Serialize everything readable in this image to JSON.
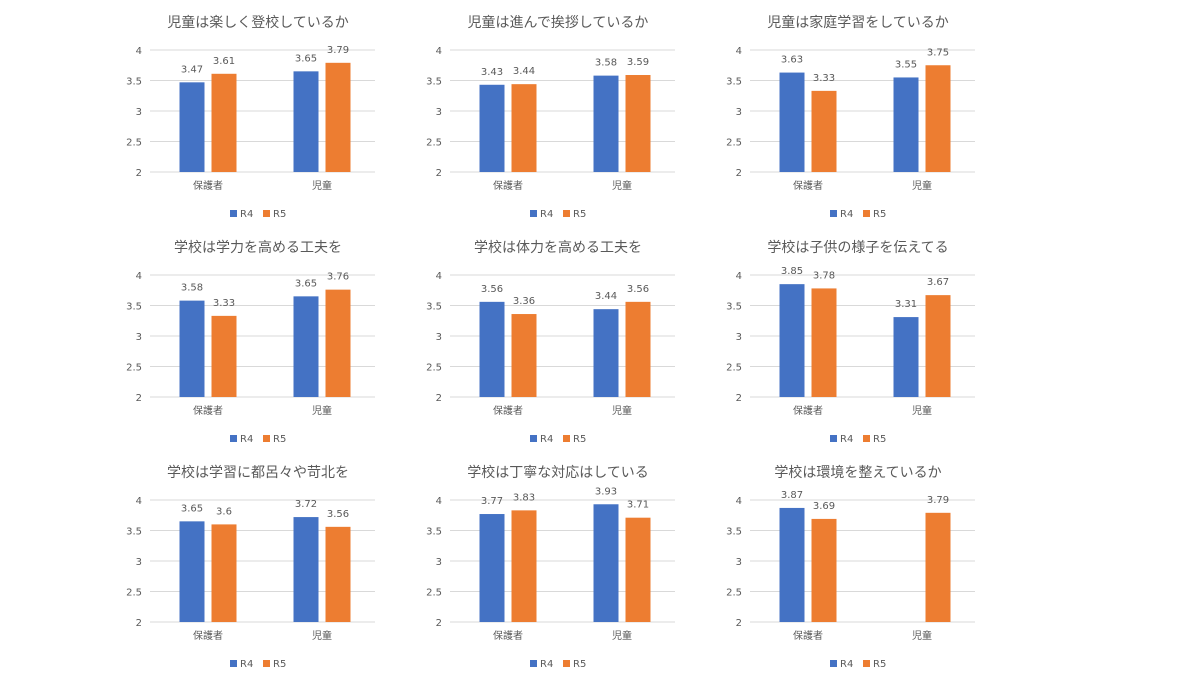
{
  "colors": {
    "R4": "#4472C4",
    "R5": "#ED7D31",
    "grid": "#D9D9D9",
    "text": "#595959"
  },
  "chart_data": [
    {
      "type": "bar",
      "title": "児童は楽しく登校しているか",
      "categories": [
        "保護者",
        "児童"
      ],
      "series": [
        {
          "name": "R4",
          "values": [
            3.47,
            3.65
          ]
        },
        {
          "name": "R5",
          "values": [
            3.61,
            3.79
          ]
        }
      ],
      "ylim": [
        2,
        4
      ],
      "yticks": [
        "2",
        "2.5",
        "3",
        "3.5",
        "4"
      ],
      "grid": true,
      "legend": "bottom"
    },
    {
      "type": "bar",
      "title": "児童は進んで挨拶しているか",
      "categories": [
        "保護者",
        "児童"
      ],
      "series": [
        {
          "name": "R4",
          "values": [
            3.43,
            3.58
          ]
        },
        {
          "name": "R5",
          "values": [
            3.44,
            3.59
          ]
        }
      ],
      "ylim": [
        2,
        4
      ],
      "yticks": [
        "2",
        "2.5",
        "3",
        "3.5",
        "4"
      ],
      "grid": true,
      "legend": "bottom"
    },
    {
      "type": "bar",
      "title": "児童は家庭学習をしているか",
      "categories": [
        "保護者",
        "児童"
      ],
      "series": [
        {
          "name": "R4",
          "values": [
            3.63,
            3.55
          ]
        },
        {
          "name": "R5",
          "values": [
            3.33,
            3.75
          ]
        }
      ],
      "ylim": [
        2,
        4
      ],
      "yticks": [
        "2",
        "2.5",
        "3",
        "3.5",
        "4"
      ],
      "grid": true,
      "legend": "bottom"
    },
    {
      "type": "bar",
      "title": "学校は学力を高める工夫を",
      "categories": [
        "保護者",
        "児童"
      ],
      "series": [
        {
          "name": "R4",
          "values": [
            3.58,
            3.65
          ]
        },
        {
          "name": "R5",
          "values": [
            3.33,
            3.76
          ]
        }
      ],
      "ylim": [
        2,
        4
      ],
      "yticks": [
        "2",
        "2.5",
        "3",
        "3.5",
        "4"
      ],
      "grid": true,
      "legend": "bottom"
    },
    {
      "type": "bar",
      "title": "学校は体力を高める工夫を",
      "categories": [
        "保護者",
        "児童"
      ],
      "series": [
        {
          "name": "R4",
          "values": [
            3.56,
            3.44
          ]
        },
        {
          "name": "R5",
          "values": [
            3.36,
            3.56
          ]
        }
      ],
      "ylim": [
        2,
        4
      ],
      "yticks": [
        "2",
        "2.5",
        "3",
        "3.5",
        "4"
      ],
      "grid": true,
      "legend": "bottom"
    },
    {
      "type": "bar",
      "title": "学校は子供の様子を伝えてる",
      "categories": [
        "保護者",
        "児童"
      ],
      "series": [
        {
          "name": "R4",
          "values": [
            3.85,
            3.31
          ]
        },
        {
          "name": "R5",
          "values": [
            3.78,
            3.67
          ]
        }
      ],
      "ylim": [
        2,
        4
      ],
      "yticks": [
        "2",
        "2.5",
        "3",
        "3.5",
        "4"
      ],
      "grid": true,
      "legend": "bottom"
    },
    {
      "type": "bar",
      "title": "学校は学習に都呂々や苛北を",
      "categories": [
        "保護者",
        "児童"
      ],
      "series": [
        {
          "name": "R4",
          "values": [
            3.65,
            3.72
          ]
        },
        {
          "name": "R5",
          "values": [
            3.6,
            3.56
          ]
        }
      ],
      "ylim": [
        2,
        4
      ],
      "yticks": [
        "2",
        "2.5",
        "3",
        "3.5",
        "4"
      ],
      "grid": true,
      "legend": "bottom"
    },
    {
      "type": "bar",
      "title": "学校は丁寧な対応はしている",
      "categories": [
        "保護者",
        "児童"
      ],
      "series": [
        {
          "name": "R4",
          "values": [
            3.77,
            3.93
          ]
        },
        {
          "name": "R5",
          "values": [
            3.83,
            3.71
          ]
        }
      ],
      "ylim": [
        2,
        4
      ],
      "yticks": [
        "2",
        "2.5",
        "3",
        "3.5",
        "4"
      ],
      "grid": true,
      "legend": "bottom"
    },
    {
      "type": "bar",
      "title": "学校は環境を整えているか",
      "categories": [
        "保護者",
        "児童"
      ],
      "series": [
        {
          "name": "R4",
          "values": [
            3.87,
            null
          ]
        },
        {
          "name": "R5",
          "values": [
            3.69,
            3.79
          ]
        }
      ],
      "ylim": [
        2,
        4
      ],
      "yticks": [
        "2",
        "2.5",
        "3",
        "3.5",
        "4"
      ],
      "grid": true,
      "legend": "bottom"
    }
  ]
}
